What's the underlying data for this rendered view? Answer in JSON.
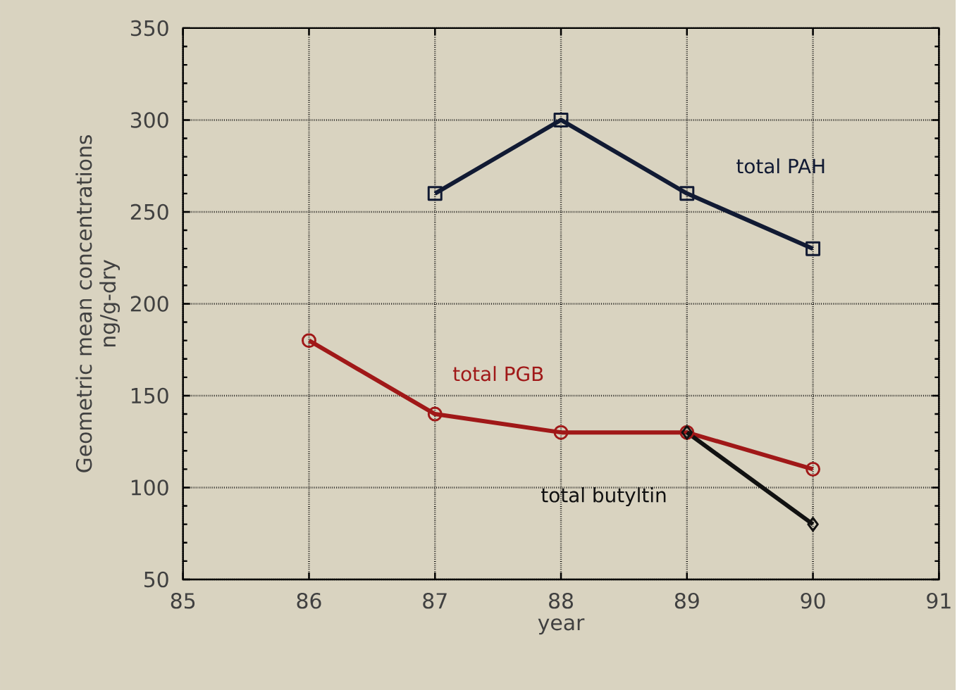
{
  "chart_data": {
    "type": "line",
    "xlabel": "year",
    "ylabel": "Geometric mean concentrations\nng/g-dry",
    "x": [
      86,
      87,
      88,
      89,
      90
    ],
    "series": [
      {
        "name": "total PAH",
        "color": "#111a33",
        "marker": "square",
        "values": [
          null,
          260,
          300,
          260,
          230
        ]
      },
      {
        "name": "total PGB",
        "color": "#a01818",
        "marker": "circle",
        "values": [
          180,
          140,
          130,
          130,
          110
        ]
      },
      {
        "name": "total butyltin",
        "color": "#111111",
        "marker": "diamond",
        "values": [
          null,
          null,
          null,
          130,
          80
        ]
      }
    ],
    "xlim": [
      85,
      91
    ],
    "ylim": [
      50,
      350
    ],
    "xticks": [
      85,
      86,
      87,
      88,
      89,
      90,
      91
    ],
    "yticks": [
      50,
      100,
      150,
      200,
      250,
      300,
      350
    ],
    "grid": true,
    "line_style": "solid"
  }
}
